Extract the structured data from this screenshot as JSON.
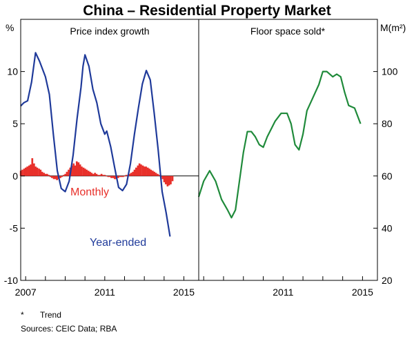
{
  "title": "China – Residential Property Market",
  "footnote_marker": "*",
  "footnote_text": "Trend",
  "sources": "Sources:  CEIC Data; RBA",
  "colors": {
    "year_ended": "#1f3a9a",
    "monthly": "#e8302a",
    "floor_space": "#1f8a3a",
    "frame": "#000000"
  },
  "chart_data": [
    {
      "type": "line",
      "panel_title": "Price index growth",
      "ylabel": "%",
      "ylim": [
        -10,
        15
      ],
      "yticks": [
        -10,
        -5,
        0,
        5,
        10
      ],
      "ytick_labels": [
        "-10",
        "-5",
        "0",
        "5",
        "10"
      ],
      "xlim": [
        2006.75,
        2015.75
      ],
      "xticks": [
        2007,
        2011,
        2015
      ],
      "xtick_labels": [
        "2007",
        "2011",
        "2015"
      ],
      "series": [
        {
          "name": "Year-ended",
          "type": "line",
          "x": [
            2006.75,
            2006.9,
            2007.1,
            2007.3,
            2007.5,
            2007.7,
            2008.0,
            2008.2,
            2008.4,
            2008.6,
            2008.8,
            2009.0,
            2009.2,
            2009.4,
            2009.6,
            2009.8,
            2009.9,
            2010.0,
            2010.2,
            2010.4,
            2010.6,
            2010.8,
            2011.0,
            2011.1,
            2011.3,
            2011.5,
            2011.7,
            2011.9,
            2012.1,
            2012.3,
            2012.5,
            2012.7,
            2012.9,
            2013.1,
            2013.3,
            2013.5,
            2013.7,
            2013.9,
            2014.1,
            2014.3,
            2014.5,
            2014.7,
            2014.9
          ],
          "y": [
            6.7,
            7.0,
            7.2,
            9.0,
            11.8,
            11.0,
            9.5,
            7.8,
            4.0,
            0.5,
            -1.2,
            -1.5,
            -0.5,
            2.0,
            5.5,
            8.5,
            10.5,
            11.6,
            10.5,
            8.3,
            7.0,
            5.0,
            4.0,
            4.3,
            2.8,
            0.8,
            -1.1,
            -1.4,
            -0.8,
            1.2,
            4.0,
            6.5,
            8.8,
            10.1,
            9.2,
            6.0,
            2.5,
            -1.5,
            -3.5,
            -5.8,
            null,
            null,
            null
          ]
        },
        {
          "name": "Monthly",
          "type": "bar",
          "x": [
            2006.75,
            2006.83,
            2006.92,
            2007.0,
            2007.08,
            2007.17,
            2007.25,
            2007.33,
            2007.42,
            2007.5,
            2007.58,
            2007.67,
            2007.75,
            2007.83,
            2007.92,
            2008.0,
            2008.08,
            2008.17,
            2008.25,
            2008.33,
            2008.42,
            2008.5,
            2008.58,
            2008.67,
            2008.75,
            2008.83,
            2008.92,
            2009.0,
            2009.08,
            2009.17,
            2009.25,
            2009.33,
            2009.42,
            2009.5,
            2009.58,
            2009.67,
            2009.75,
            2009.83,
            2009.92,
            2010.0,
            2010.08,
            2010.17,
            2010.25,
            2010.33,
            2010.42,
            2010.5,
            2010.58,
            2010.67,
            2010.75,
            2010.83,
            2010.92,
            2011.0,
            2011.08,
            2011.17,
            2011.25,
            2011.33,
            2011.42,
            2011.5,
            2011.58,
            2011.67,
            2011.75,
            2011.83,
            2011.92,
            2012.0,
            2012.08,
            2012.17,
            2012.25,
            2012.33,
            2012.42,
            2012.5,
            2012.58,
            2012.67,
            2012.75,
            2012.83,
            2012.92,
            2013.0,
            2013.08,
            2013.17,
            2013.25,
            2013.33,
            2013.42,
            2013.5,
            2013.58,
            2013.67,
            2013.75,
            2013.83,
            2013.92,
            2014.0,
            2014.08,
            2014.17,
            2014.25,
            2014.33,
            2014.42,
            2014.5,
            2014.58,
            2014.67,
            2014.75,
            2014.83,
            2014.92
          ],
          "y": [
            0.5,
            0.6,
            0.7,
            0.8,
            0.9,
            1.0,
            1.1,
            1.7,
            1.2,
            0.9,
            0.8,
            0.7,
            0.6,
            0.4,
            0.3,
            0.2,
            0.2,
            0.1,
            -0.1,
            -0.2,
            -0.3,
            -0.3,
            -0.4,
            -0.3,
            -0.2,
            -0.1,
            0.1,
            0.2,
            0.4,
            0.6,
            0.8,
            1.0,
            1.2,
            1.0,
            1.4,
            1.3,
            1.1,
            0.9,
            0.8,
            0.7,
            0.6,
            0.5,
            0.4,
            0.3,
            0.2,
            0.3,
            0.2,
            0.1,
            0.1,
            0.2,
            0.1,
            0.1,
            0.0,
            -0.1,
            -0.1,
            -0.2,
            -0.2,
            -0.3,
            -0.3,
            -0.2,
            -0.1,
            -0.1,
            -0.1,
            0.0,
            0.1,
            0.1,
            0.2,
            0.3,
            0.4,
            0.6,
            0.8,
            1.0,
            1.2,
            1.1,
            1.0,
            0.9,
            0.9,
            0.8,
            0.7,
            0.6,
            0.5,
            0.4,
            0.3,
            0.2,
            0.1,
            -0.1,
            -0.3,
            -0.6,
            -0.8,
            -1.0,
            -0.9,
            -0.8,
            -0.5,
            null,
            null,
            null,
            null,
            null,
            null
          ]
        }
      ]
    },
    {
      "type": "line",
      "panel_title": "Floor space sold*",
      "ylabel": "M(m²)",
      "ylim": [
        20,
        120
      ],
      "yticks": [
        20,
        40,
        60,
        80,
        100
      ],
      "ytick_labels": [
        "20",
        "40",
        "60",
        "80",
        "100"
      ],
      "xlim": [
        2006.75,
        2015.75
      ],
      "xticks": [
        2011,
        2015
      ],
      "xtick_labels": [
        "2011",
        "2015"
      ],
      "series": [
        {
          "name": "",
          "x": [
            2006.75,
            2007.0,
            2007.3,
            2007.6,
            2007.9,
            2008.2,
            2008.4,
            2008.6,
            2008.8,
            2009.0,
            2009.2,
            2009.4,
            2009.6,
            2009.8,
            2010.0,
            2010.2,
            2010.4,
            2010.6,
            2010.9,
            2011.2,
            2011.4,
            2011.6,
            2011.8,
            2012.0,
            2012.2,
            2012.5,
            2012.8,
            2013.0,
            2013.2,
            2013.5,
            2013.7,
            2013.9,
            2014.1,
            2014.3,
            2014.6,
            2014.9
          ],
          "y": [
            52,
            58,
            62,
            58,
            51,
            47,
            44,
            47,
            58,
            69,
            77,
            77,
            75,
            72,
            71,
            75,
            78,
            81,
            84,
            84,
            80,
            72,
            70,
            76,
            85,
            90,
            95,
            100,
            100,
            98,
            99,
            98,
            92,
            87,
            86,
            80
          ]
        }
      ]
    }
  ],
  "series_labels": [
    {
      "text": "Monthly",
      "color": "#e8302a"
    },
    {
      "text": "Year-ended",
      "color": "#1f3a9a"
    }
  ]
}
